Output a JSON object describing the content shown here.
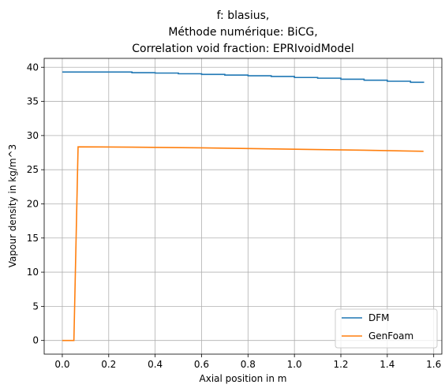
{
  "chart_data": {
    "type": "line",
    "title_lines": [
      "f: blasius,",
      "Méthode numérique: BiCG,",
      "Correlation void fraction: EPRIvoidModel"
    ],
    "xlabel": "Axial position in m",
    "ylabel": "Vapour density in kg/m^3",
    "xlim": [
      -0.078,
      1.635
    ],
    "ylim": [
      -2.0,
      41.3
    ],
    "xticks": [
      0.0,
      0.2,
      0.4,
      0.6,
      0.8,
      1.0,
      1.2,
      1.4,
      1.6
    ],
    "xtick_labels": [
      "0.0",
      "0.2",
      "0.4",
      "0.6",
      "0.8",
      "1.0",
      "1.2",
      "1.4",
      "1.6"
    ],
    "yticks": [
      0,
      5,
      10,
      15,
      20,
      25,
      30,
      35,
      40
    ],
    "ytick_labels": [
      "0",
      "5",
      "10",
      "15",
      "20",
      "25",
      "30",
      "35",
      "40"
    ],
    "grid": true,
    "legend_position": "lower-right",
    "series": [
      {
        "name": "DFM",
        "color": "#1f77b4",
        "step": true,
        "x": [
          0.0,
          0.1,
          0.2,
          0.3,
          0.4,
          0.5,
          0.6,
          0.7,
          0.8,
          0.9,
          1.0,
          1.1,
          1.2,
          1.3,
          1.4,
          1.5,
          1.556
        ],
        "y": [
          39.3,
          39.3,
          39.3,
          39.2,
          39.15,
          39.05,
          38.95,
          38.85,
          38.75,
          38.65,
          38.5,
          38.4,
          38.25,
          38.1,
          37.95,
          37.8,
          37.7
        ]
      },
      {
        "name": "GenFoam",
        "color": "#ff7f0e",
        "step": false,
        "x": [
          0.0,
          0.05,
          0.068,
          0.3,
          0.6,
          1.0,
          1.3,
          1.556
        ],
        "y": [
          0.0,
          0.0,
          28.35,
          28.3,
          28.2,
          28.0,
          27.85,
          27.7
        ]
      }
    ]
  }
}
